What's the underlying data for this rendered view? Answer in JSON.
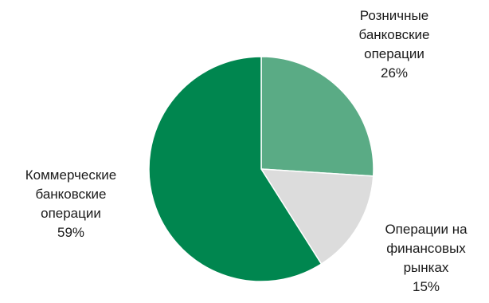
{
  "chart_data": {
    "type": "pie",
    "title": "",
    "slices": [
      {
        "label_lines": [
          "Розничные",
          "банковские",
          "операции"
        ],
        "value": 26,
        "value_text": "26%",
        "color": "#5aab85"
      },
      {
        "label_lines": [
          "Операции на",
          "финансовых",
          "рынках"
        ],
        "value": 15,
        "value_text": "15%",
        "color": "#dcdcdc"
      },
      {
        "label_lines": [
          "Коммерческие",
          "банковские",
          "операции"
        ],
        "value": 59,
        "value_text": "59%",
        "color": "#00864f"
      }
    ],
    "start_angle_deg": 0,
    "direction": "clockwise",
    "slice_border_color": "#ffffff",
    "legend": "none"
  }
}
